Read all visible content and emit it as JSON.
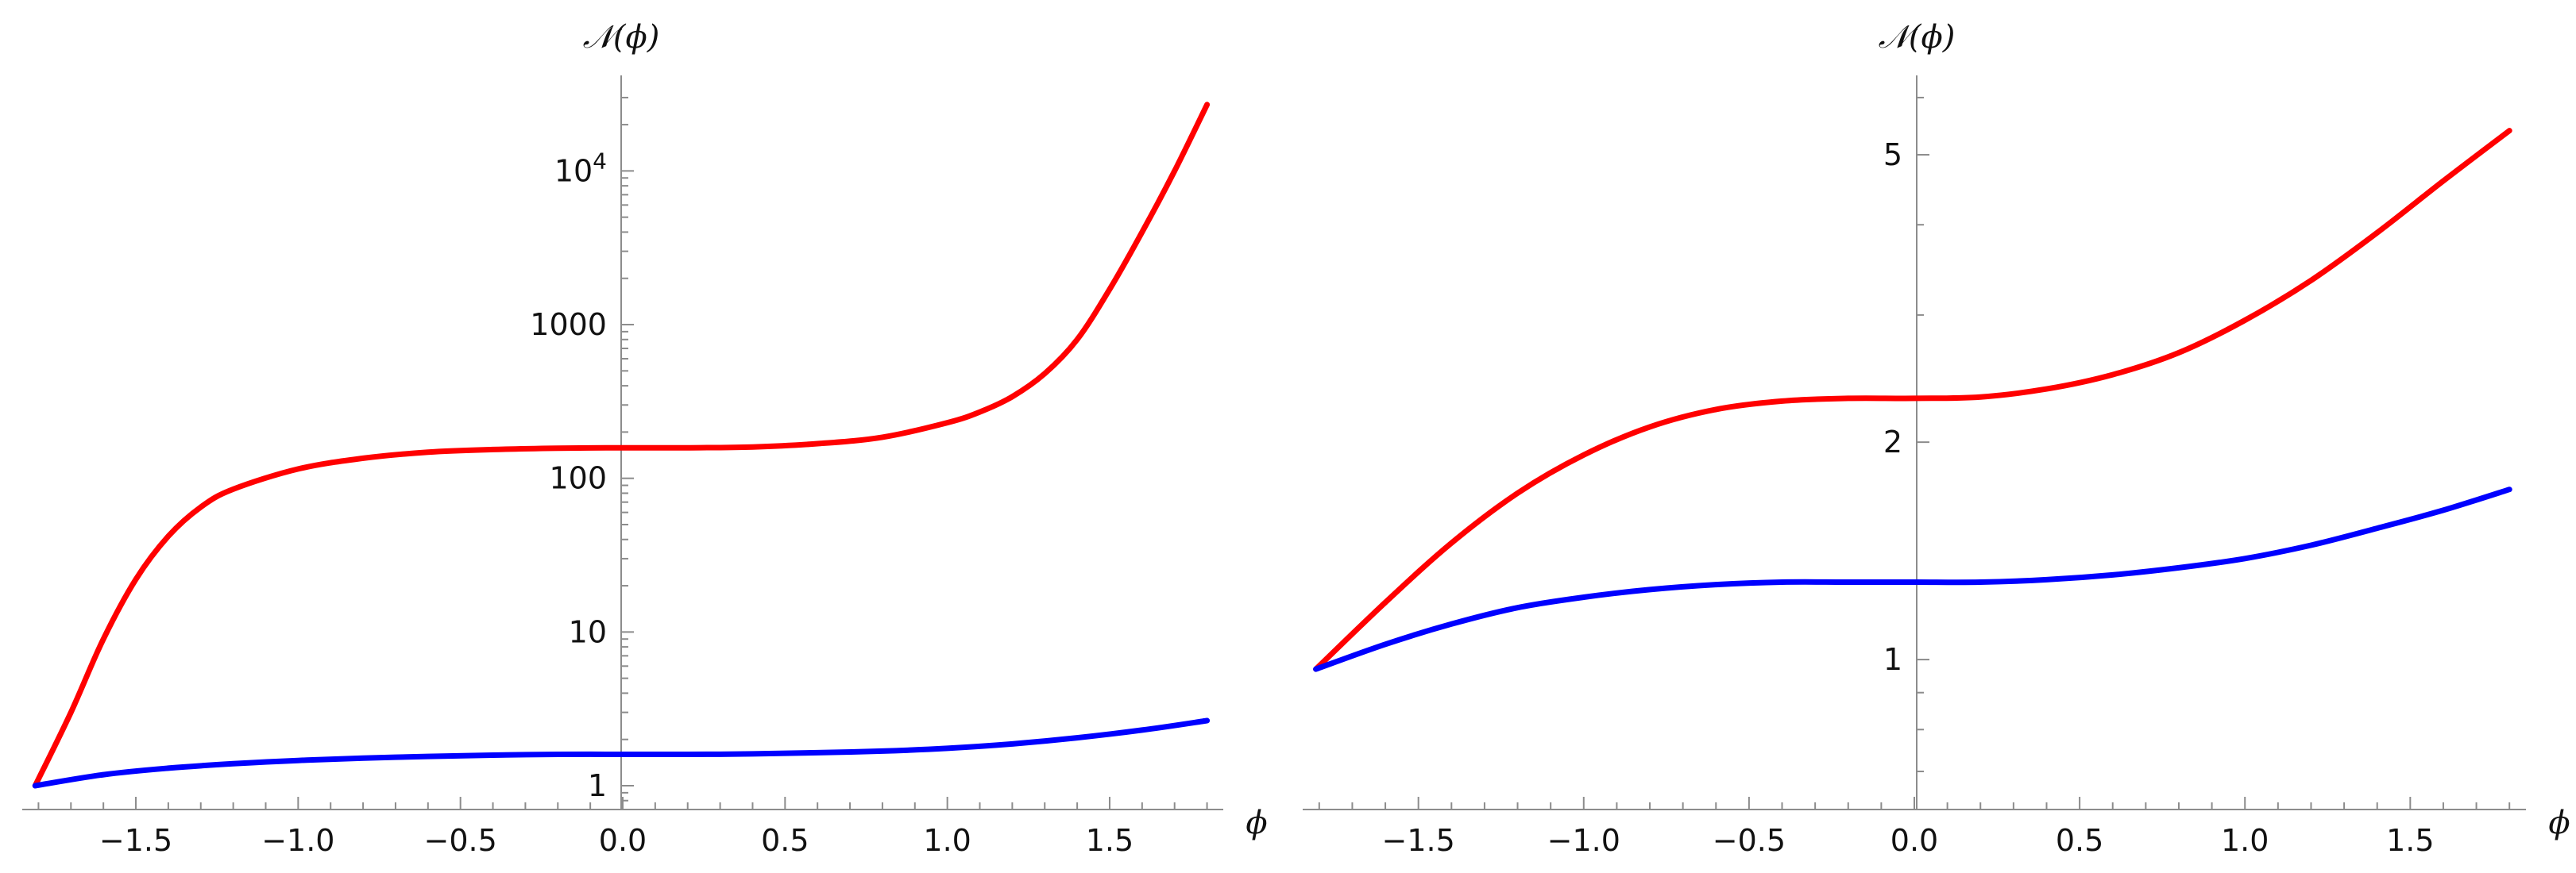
{
  "chart_data": [
    {
      "type": "line",
      "title": "",
      "xlabel": "ϕ",
      "ylabel": "𝒩(ϕ)",
      "yscale": "log",
      "xlim": [
        -1.85,
        1.85
      ],
      "ylim": [
        0.7,
        35000
      ],
      "xticks": [
        -1.5,
        -1.0,
        -0.5,
        0.0,
        0.5,
        1.0,
        1.5
      ],
      "xtick_labels": [
        "−1.5",
        "−1.0",
        "−0.5",
        "0.0",
        "0.5",
        "1.0",
        "1.5"
      ],
      "yticks": [
        1,
        10,
        100,
        1000,
        10000
      ],
      "ytick_labels": [
        "1",
        "10",
        "100",
        "1000",
        "10^4"
      ],
      "grid": false,
      "legend": "none",
      "series": [
        {
          "color": "#ff0000",
          "x": [
            -1.81,
            -1.7,
            -1.6,
            -1.5,
            -1.4,
            -1.3,
            -1.2,
            -1.0,
            -0.8,
            -0.6,
            -0.4,
            -0.2,
            0.0,
            0.2,
            0.4,
            0.6,
            0.8,
            1.0,
            1.1,
            1.2,
            1.3,
            1.4,
            1.5,
            1.6,
            1.7,
            1.8
          ],
          "y": [
            1.0,
            3.0,
            9.0,
            22,
            42,
            65,
            85,
            115,
            135,
            148,
            154,
            157,
            158,
            158,
            160,
            168,
            185,
            230,
            270,
            340,
            480,
            800,
            1700,
            4000,
            10000,
            27000
          ]
        },
        {
          "color": "#0000ff",
          "x": [
            -1.81,
            -1.6,
            -1.4,
            -1.2,
            -1.0,
            -0.8,
            -0.6,
            -0.4,
            -0.2,
            0.0,
            0.2,
            0.4,
            0.6,
            0.8,
            1.0,
            1.2,
            1.4,
            1.6,
            1.8
          ],
          "y": [
            1.0,
            1.18,
            1.3,
            1.39,
            1.46,
            1.51,
            1.55,
            1.58,
            1.6,
            1.6,
            1.6,
            1.61,
            1.64,
            1.68,
            1.75,
            1.87,
            2.05,
            2.3,
            2.65
          ]
        }
      ]
    },
    {
      "type": "line",
      "title": "",
      "xlabel": "ϕ",
      "ylabel": "𝒩(ϕ)",
      "yscale": "log",
      "xlim": [
        -1.85,
        1.85
      ],
      "ylim": [
        0.62,
        6.2
      ],
      "xticks": [
        -1.5,
        -1.0,
        -0.5,
        0.0,
        0.5,
        1.0,
        1.5
      ],
      "xtick_labels": [
        "−1.5",
        "−1.0",
        "−0.5",
        "0.0",
        "0.5",
        "1.0",
        "1.5"
      ],
      "yticks": [
        1,
        2,
        5
      ],
      "ytick_labels": [
        "1",
        "2",
        "5"
      ],
      "grid": false,
      "legend": "none",
      "series": [
        {
          "color": "#ff0000",
          "x": [
            -1.81,
            -1.6,
            -1.4,
            -1.2,
            -1.0,
            -0.8,
            -0.6,
            -0.4,
            -0.2,
            0.0,
            0.2,
            0.4,
            0.6,
            0.8,
            1.0,
            1.2,
            1.4,
            1.6,
            1.8
          ],
          "y": [
            0.97,
            1.2,
            1.45,
            1.7,
            1.92,
            2.1,
            2.22,
            2.28,
            2.3,
            2.3,
            2.31,
            2.37,
            2.48,
            2.66,
            2.95,
            3.35,
            3.9,
            4.6,
            5.4
          ]
        },
        {
          "color": "#0000ff",
          "x": [
            -1.81,
            -1.6,
            -1.4,
            -1.2,
            -1.0,
            -0.8,
            -0.6,
            -0.4,
            -0.2,
            0.0,
            0.2,
            0.4,
            0.6,
            0.8,
            1.0,
            1.2,
            1.4,
            1.6,
            1.8
          ],
          "y": [
            0.97,
            1.05,
            1.12,
            1.18,
            1.22,
            1.25,
            1.27,
            1.28,
            1.28,
            1.28,
            1.28,
            1.29,
            1.31,
            1.34,
            1.38,
            1.44,
            1.52,
            1.61,
            1.72
          ]
        }
      ]
    }
  ]
}
